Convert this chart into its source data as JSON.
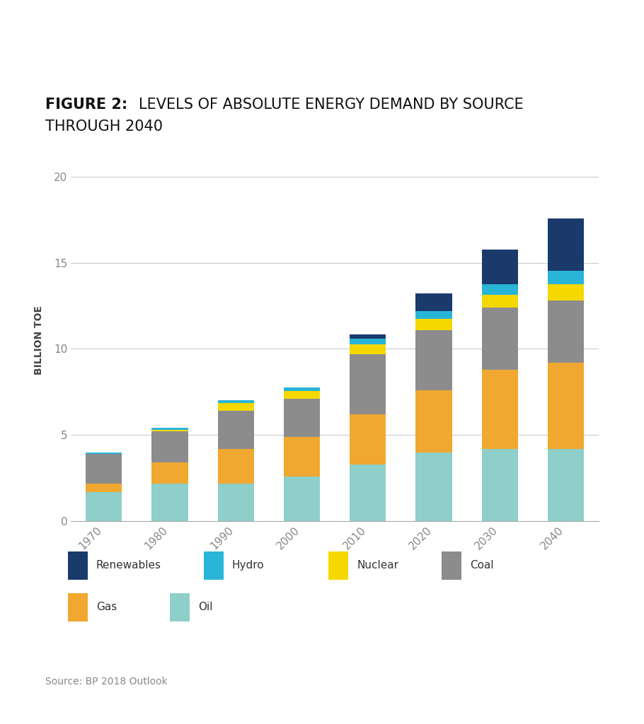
{
  "years": [
    "1970",
    "1980",
    "1990",
    "2000",
    "2010",
    "2020",
    "2030",
    "2040"
  ],
  "sources": [
    "Oil",
    "Gas",
    "Coal",
    "Nuclear",
    "Hydro",
    "Renewables"
  ],
  "colors": {
    "Oil": "#8ecfc9",
    "Gas": "#f0a830",
    "Coal": "#8c8c8c",
    "Nuclear": "#f5d800",
    "Hydro": "#29b5d8",
    "Renewables": "#1a3a6b"
  },
  "data": {
    "Oil": [
      1.7,
      2.2,
      2.2,
      2.6,
      3.3,
      4.0,
      4.2,
      4.2
    ],
    "Gas": [
      0.5,
      1.2,
      2.0,
      2.3,
      2.9,
      3.6,
      4.6,
      5.0
    ],
    "Coal": [
      1.7,
      1.8,
      2.2,
      2.2,
      3.5,
      3.5,
      3.6,
      3.6
    ],
    "Nuclear": [
      0.02,
      0.1,
      0.45,
      0.45,
      0.55,
      0.65,
      0.75,
      0.95
    ],
    "Hydro": [
      0.08,
      0.12,
      0.18,
      0.22,
      0.35,
      0.45,
      0.6,
      0.8
    ],
    "Renewables": [
      0.0,
      0.0,
      0.0,
      0.0,
      0.25,
      1.0,
      2.0,
      3.0
    ]
  },
  "title_bold": "FIGURE 2:",
  "title_normal": " LEVELS OF ABSOLUTE ENERGY DEMAND BY SOURCE\nTHROUGH 2040",
  "ylabel": "BILLION TOE",
  "ylim": [
    0,
    21
  ],
  "yticks": [
    0,
    5,
    10,
    15,
    20
  ],
  "source_text": "Source: BP 2018 Outlook",
  "background_color": "#ffffff",
  "legend_row1": [
    "Renewables",
    "Hydro",
    "Nuclear",
    "Coal"
  ],
  "legend_row2": [
    "Gas",
    "Oil"
  ]
}
